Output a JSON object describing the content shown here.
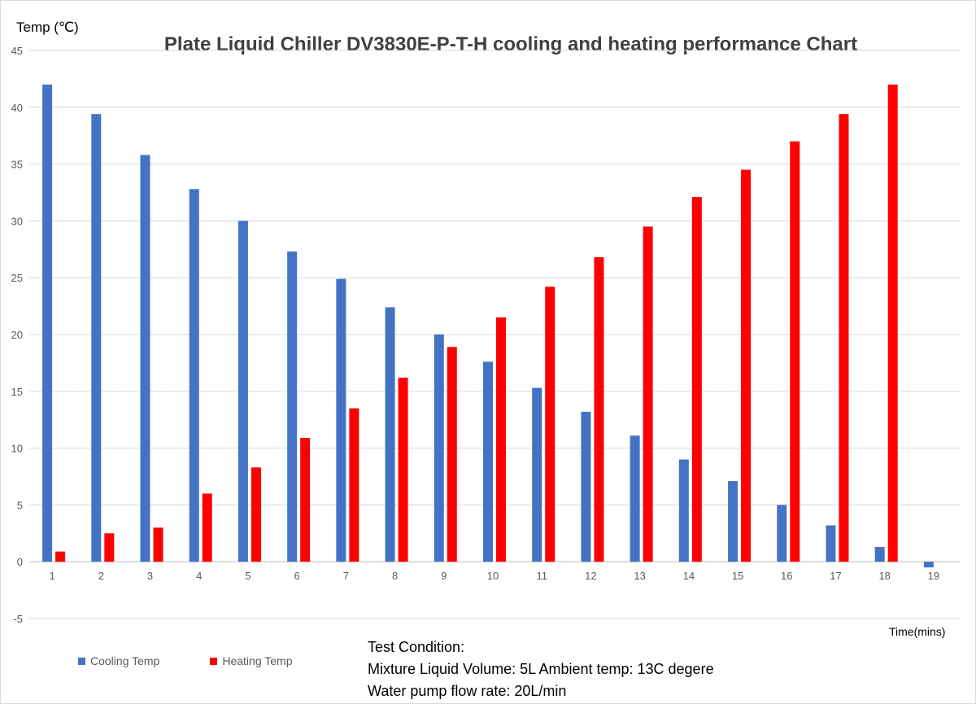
{
  "chart_data": {
    "type": "bar",
    "title": "Plate Liquid Chiller DV3830E-P-T-H cooling and heating performance Chart",
    "ylabel": "Temp (℃)",
    "xlabel": "Time(mins)",
    "ylim": [
      -5,
      45
    ],
    "ytick_step": 5,
    "yticks": [
      "-5",
      "0",
      "5",
      "10",
      "15",
      "20",
      "25",
      "30",
      "35",
      "40",
      "45"
    ],
    "grid": true,
    "categories": [
      "1",
      "2",
      "3",
      "4",
      "5",
      "6",
      "7",
      "8",
      "9",
      "10",
      "11",
      "12",
      "13",
      "14",
      "15",
      "16",
      "17",
      "18",
      "19"
    ],
    "series": [
      {
        "name": "Cooling Temp",
        "color": "#4472c4",
        "values": [
          42,
          39.4,
          35.8,
          32.8,
          30,
          27.3,
          24.9,
          22.4,
          20,
          17.6,
          15.3,
          13.2,
          11.1,
          9,
          7.1,
          5,
          3.2,
          1.3,
          -0.5
        ]
      },
      {
        "name": "Heating Temp",
        "color": "#ff0000",
        "values": [
          0.9,
          2.5,
          3,
          6,
          8.3,
          10.9,
          13.5,
          16.2,
          18.9,
          21.5,
          24.2,
          26.8,
          29.5,
          32.1,
          34.5,
          37,
          39.4,
          42,
          null
        ]
      }
    ],
    "legend_position": "bottom-left"
  },
  "notes": {
    "line1": "Test Condition:",
    "line2": "Mixture Liquid Volume: 5L   Ambient temp: 13C  degere",
    "line3": "Water pump flow rate: 20L/min"
  }
}
